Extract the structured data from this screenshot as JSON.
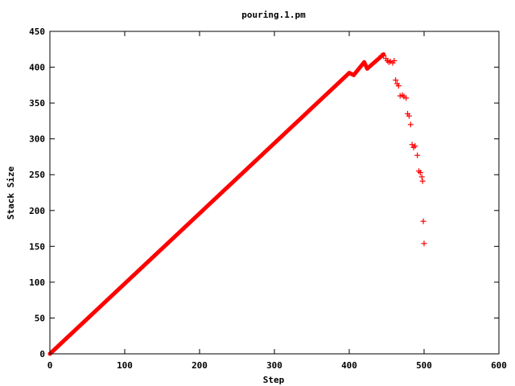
{
  "chart_data": {
    "type": "scatter",
    "title": "pouring.1.pm",
    "xlabel": "Step",
    "ylabel": "Stack Size",
    "xlim": [
      0,
      600
    ],
    "ylim": [
      0,
      450
    ],
    "x_ticks": [
      "0",
      "100",
      "200",
      "300",
      "400",
      "500",
      "600"
    ],
    "y_ticks": [
      "0",
      "50",
      "100",
      "150",
      "200",
      "250",
      "300",
      "350",
      "400",
      "450"
    ],
    "grid": false,
    "legend": "none",
    "marker": "+",
    "color": "#ff0000",
    "series": [
      {
        "line_segments": [
          {
            "x": [
              0,
              400
            ],
            "y": [
              0,
              392
            ]
          },
          {
            "x": [
              400,
              406
            ],
            "y": [
              392,
              389
            ]
          },
          {
            "x": [
              406,
              420
            ],
            "y": [
              389,
              407
            ]
          },
          {
            "x": [
              420,
              424
            ],
            "y": [
              407,
              398
            ]
          },
          {
            "x": [
              424,
              446
            ],
            "y": [
              398,
              418
            ]
          }
        ],
        "points": [
          [
            443,
            416
          ],
          [
            446,
            416
          ],
          [
            449,
            412
          ],
          [
            451,
            409
          ],
          [
            453,
            407
          ],
          [
            455,
            408
          ],
          [
            458,
            406
          ],
          [
            460,
            409
          ],
          [
            462,
            382
          ],
          [
            464,
            377
          ],
          [
            466,
            374
          ],
          [
            468,
            360
          ],
          [
            471,
            361
          ],
          [
            473,
            359
          ],
          [
            476,
            357
          ],
          [
            478,
            335
          ],
          [
            480,
            332
          ],
          [
            482,
            320
          ],
          [
            484,
            292
          ],
          [
            486,
            288
          ],
          [
            488,
            290
          ],
          [
            491,
            277
          ],
          [
            493,
            255
          ],
          [
            495,
            253
          ],
          [
            497,
            247
          ],
          [
            498,
            241
          ],
          [
            499,
            185
          ],
          [
            500,
            154
          ]
        ]
      }
    ]
  }
}
